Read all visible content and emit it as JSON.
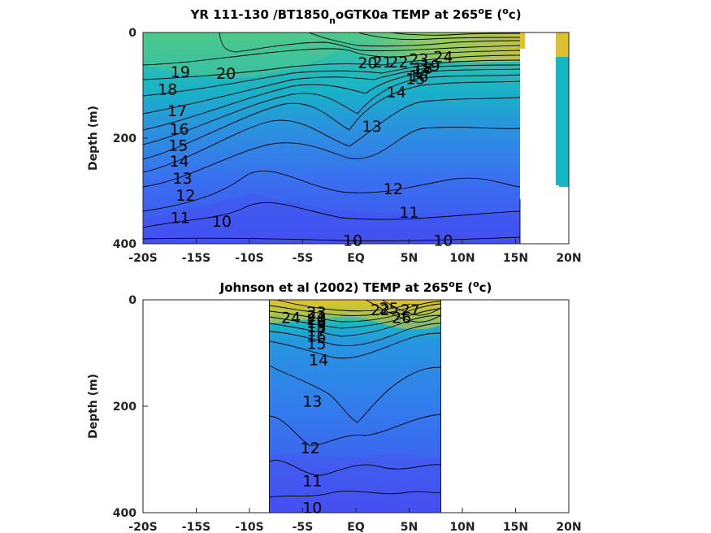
{
  "colors": {
    "warm": "#e6c12e",
    "green": "#4cc884",
    "cyan": "#15b8c0",
    "blue": "#2f7ee8",
    "deep": "#3f50f0"
  },
  "chart_data": [
    {
      "type": "contour",
      "title_main": "YR 111-130 /BT1850",
      "title_sub": "n",
      "title_rest": "oGTK0a TEMP at 265",
      "title_sup1": "o",
      "title_mid": "E (",
      "title_sup2": "o",
      "title_end": "c)",
      "ylabel": "Depth (m)",
      "x_ticks": [
        "-20S",
        "-15S",
        "-10S",
        "-5S",
        "EQ",
        "5N",
        "10N",
        "15N",
        "20N"
      ],
      "x_values": [
        -20,
        -15,
        -10,
        -5,
        0,
        5,
        10,
        15,
        20
      ],
      "y_ticks": [
        "0",
        "200",
        "400"
      ],
      "y_values": [
        0,
        200,
        400
      ],
      "xlim": [
        -20,
        20
      ],
      "ylim": [
        400,
        0
      ],
      "mask": [
        [
          15.2,
          20.0,
          0,
          400
        ]
      ],
      "contour_levels": [
        {
          "value": "10",
          "label_at": [
            [
              -12.6,
              357
            ],
            [
              -0.3,
              393
            ],
            [
              8.2,
              393
            ]
          ]
        },
        {
          "value": "11",
          "label_at": [
            [
              -16.5,
              350
            ],
            [
              5.0,
              340
            ]
          ]
        },
        {
          "value": "12",
          "label_at": [
            [
              -16.0,
              308
            ],
            [
              3.5,
              295
            ]
          ]
        },
        {
          "value": "13",
          "label_at": [
            [
              -16.3,
              275
            ],
            [
              1.5,
              177
            ]
          ]
        },
        {
          "value": "14",
          "label_at": [
            [
              -16.6,
              243
            ],
            [
              3.8,
              112
            ]
          ]
        },
        {
          "value": "15",
          "label_at": [
            [
              -16.7,
              213
            ],
            [
              5.6,
              87
            ]
          ]
        },
        {
          "value": "16",
          "label_at": [
            [
              -16.6,
              182
            ],
            [
              5.9,
              82
            ]
          ]
        },
        {
          "value": "17",
          "label_at": [
            [
              -16.8,
              148
            ],
            [
              6.2,
              73
            ]
          ]
        },
        {
          "value": "18",
          "label_at": [
            [
              -17.7,
              107
            ],
            [
              6.3,
              67
            ]
          ]
        },
        {
          "value": "19",
          "label_at": [
            [
              -16.5,
              74
            ],
            [
              7.0,
              62
            ]
          ]
        },
        {
          "value": "20",
          "label_at": [
            [
              -12.2,
              77
            ],
            [
              1.1,
              57
            ]
          ]
        },
        {
          "value": "21",
          "label_at": [
            [
              2.5,
              55
            ]
          ]
        },
        {
          "value": "22",
          "label_at": [
            [
              4.0,
              55
            ]
          ]
        },
        {
          "value": "23",
          "label_at": [
            [
              5.9,
              50
            ]
          ]
        },
        {
          "value": "24",
          "label_at": [
            [
              8.2,
              45
            ]
          ]
        }
      ]
    },
    {
      "type": "contour",
      "title_main": "Johnson et al (2002) TEMP at 265",
      "title_sup1": "o",
      "title_mid": "E (",
      "title_sup2": "o",
      "title_end": "c)",
      "ylabel": "Depth (m)",
      "x_ticks": [
        "-20S",
        "-15S",
        "-10S",
        "-5S",
        "EQ",
        "5N",
        "10N",
        "15N",
        "20N"
      ],
      "x_values": [
        -20,
        -15,
        -10,
        -5,
        0,
        5,
        10,
        15,
        20
      ],
      "y_ticks": [
        "0",
        "200",
        "400"
      ],
      "y_values": [
        0,
        200,
        400
      ],
      "xlim": [
        -20,
        20
      ],
      "ylim": [
        400,
        0
      ],
      "data_extent_x": [
        -8,
        8
      ],
      "contour_levels": [
        {
          "value": "10",
          "label_at": [
            [
              -4.1,
              390
            ]
          ]
        },
        {
          "value": "11",
          "label_at": [
            [
              -4.1,
              340
            ]
          ]
        },
        {
          "value": "12",
          "label_at": [
            [
              -4.3,
              278
            ]
          ]
        },
        {
          "value": "13",
          "label_at": [
            [
              -4.1,
              190
            ]
          ]
        },
        {
          "value": "14",
          "label_at": [
            [
              -3.5,
              112
            ]
          ]
        },
        {
          "value": "15",
          "label_at": [
            [
              -3.7,
              82
            ]
          ]
        },
        {
          "value": "16",
          "label_at": [
            [
              -3.7,
              68
            ]
          ]
        },
        {
          "value": "17",
          "label_at": [
            [
              -3.7,
              58
            ]
          ]
        },
        {
          "value": "18",
          "label_at": [
            [
              -3.7,
              50
            ]
          ]
        },
        {
          "value": "19",
          "label_at": [
            [
              -3.7,
              43
            ]
          ]
        },
        {
          "value": "20",
          "label_at": [
            [
              -3.7,
              37
            ]
          ]
        },
        {
          "value": "21",
          "label_at": [
            [
              -3.7,
              30
            ]
          ]
        },
        {
          "value": "22",
          "label_at": [
            [
              2.3,
              18
            ]
          ]
        },
        {
          "value": "23",
          "label_at": [
            [
              -3.7,
              23
            ]
          ]
        },
        {
          "value": "24",
          "label_at": [
            [
              -6.1,
              33
            ]
          ]
        },
        {
          "value": "25",
          "label_at": [
            [
              3.1,
              15
            ]
          ]
        },
        {
          "value": "26",
          "label_at": [
            [
              4.3,
              33
            ]
          ]
        },
        {
          "value": "27",
          "label_at": [
            [
              5.1,
              18
            ]
          ]
        }
      ]
    }
  ]
}
